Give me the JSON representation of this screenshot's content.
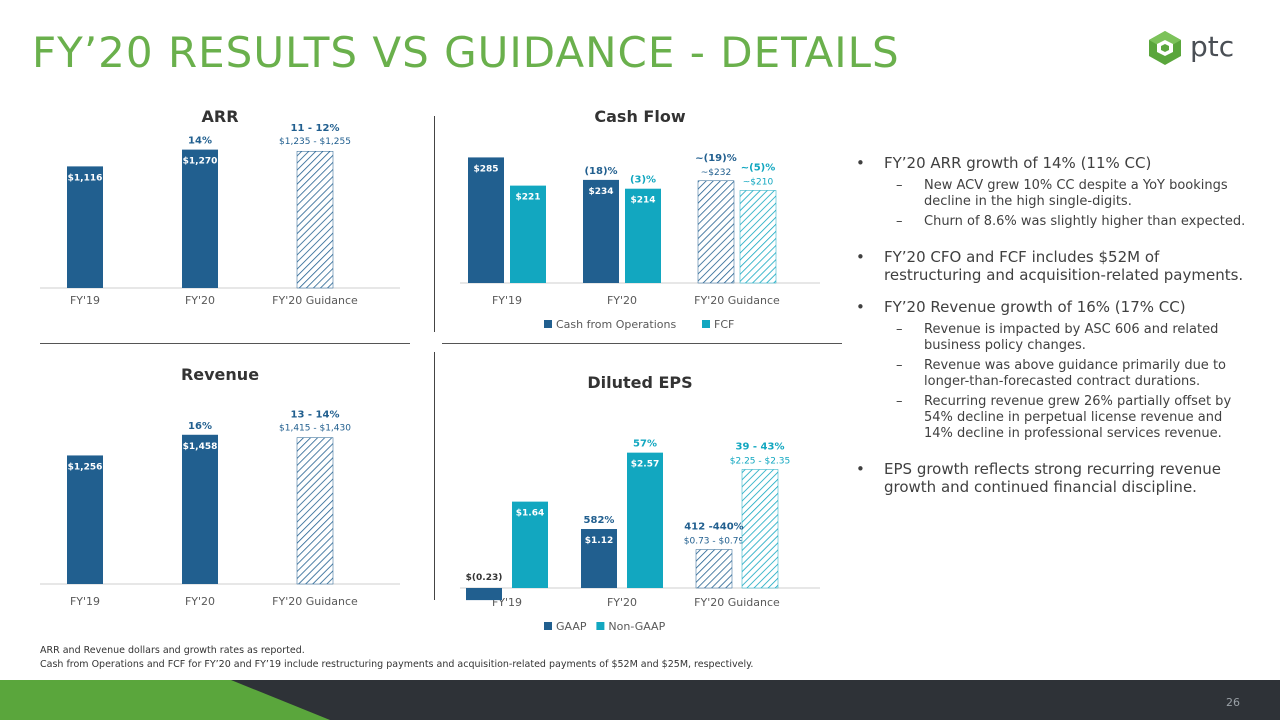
{
  "title": "FY’20 RESULTS VS GUIDANCE - DETAILS",
  "logo": {
    "text": "ptc",
    "icon": "ptc-logo-icon"
  },
  "colors": {
    "dark": "#215f8f",
    "teal": "#12a7c0",
    "green": "#6ab04c"
  },
  "chart_data": [
    {
      "type": "bar",
      "title": "ARR",
      "categories": [
        "FY'19",
        "FY'20",
        "FY'20 Guidance"
      ],
      "series": [
        {
          "values": [
            1116,
            1270,
            null
          ],
          "labels": [
            "$1,116",
            "$1,270",
            ""
          ]
        }
      ],
      "guidance": {
        "category": "FY'20 Guidance",
        "low": 1235,
        "high": 1255,
        "label": "$1,235 - $1,255"
      },
      "annotations": [
        {
          "category": "FY'20",
          "text": "14%"
        },
        {
          "category": "FY'20 Guidance",
          "text": "11 - 12%"
        }
      ],
      "ylim": [
        0,
        1450
      ]
    },
    {
      "type": "bar",
      "title": "Cash Flow",
      "categories": [
        "FY'19",
        "FY'20",
        "FY'20 Guidance"
      ],
      "series": [
        {
          "name": "Cash from Operations",
          "values": [
            285,
            234,
            232
          ],
          "labels": [
            "$285",
            "$234",
            "~$232"
          ],
          "hatched": [
            false,
            false,
            true
          ]
        },
        {
          "name": "FCF",
          "values": [
            221,
            214,
            210
          ],
          "labels": [
            "$221",
            "$214",
            "~$210"
          ],
          "hatched": [
            false,
            false,
            true
          ]
        }
      ],
      "annotations": [
        {
          "category": "FY'20",
          "series": 0,
          "text": "(18)%"
        },
        {
          "category": "FY'20",
          "series": 1,
          "text": "(3)%"
        },
        {
          "category": "FY'20 Guidance",
          "series": 0,
          "text": "~(19)%"
        },
        {
          "category": "FY'20 Guidance",
          "series": 1,
          "text": "~(5)%"
        }
      ],
      "legend": "bottom",
      "ylim": [
        0,
        320
      ]
    },
    {
      "type": "bar",
      "title": "Revenue",
      "categories": [
        "FY'19",
        "FY'20",
        "FY'20 Guidance"
      ],
      "series": [
        {
          "values": [
            1256,
            1458,
            null
          ],
          "labels": [
            "$1,256",
            "$1,458",
            ""
          ]
        }
      ],
      "guidance": {
        "category": "FY'20 Guidance",
        "low": 1415,
        "high": 1430,
        "label": "$1,415 - $1,430"
      },
      "annotations": [
        {
          "category": "FY'20",
          "text": "16%"
        },
        {
          "category": "FY'20 Guidance",
          "text": "13 - 14%"
        }
      ],
      "ylim": [
        0,
        1700
      ]
    },
    {
      "type": "bar",
      "title": "Diluted EPS",
      "categories": [
        "FY'19",
        "FY'20",
        "FY'20 Guidance"
      ],
      "series": [
        {
          "name": "GAAP",
          "values": [
            -0.23,
            1.12,
            0.73
          ],
          "labels": [
            "$(0.23)",
            "$1.12",
            "$0.73 - $0.79"
          ],
          "hatched": [
            false,
            false,
            true
          ]
        },
        {
          "name": "Non-GAAP",
          "values": [
            1.64,
            2.57,
            2.25
          ],
          "labels": [
            "$1.64",
            "$2.57",
            "$2.25 - $2.35"
          ],
          "hatched": [
            false,
            false,
            true
          ]
        }
      ],
      "annotations": [
        {
          "category": "FY'20",
          "series": 0,
          "text": "582%"
        },
        {
          "category": "FY'20",
          "series": 1,
          "text": "57%"
        },
        {
          "category": "FY'20 Guidance",
          "series": 0,
          "text": "412 -440%"
        },
        {
          "category": "FY'20 Guidance",
          "series": 1,
          "text": "39 - 43%"
        }
      ],
      "legend": "bottom",
      "ylim": [
        -0.25,
        3.0
      ]
    }
  ],
  "bullets": [
    {
      "text": "FY’20 ARR growth of 14% (11% CC)",
      "subs": [
        "New ACV grew 10% CC despite a YoY bookings decline in the high single-digits.",
        "Churn of 8.6% was slightly higher than expected."
      ]
    },
    {
      "text": "FY’20 CFO and FCF includes $52M of restructuring and acquisition-related payments.",
      "subs": []
    },
    {
      "text": "FY’20 Revenue growth of 16% (17% CC)",
      "subs": [
        "Revenue is impacted by ASC 606 and related business policy changes.",
        "Revenue was above guidance primarily due to longer-than-forecasted contract durations.",
        "Recurring revenue grew 26% partially offset by 54% decline in perpetual license revenue and 14% decline in professional services revenue."
      ]
    },
    {
      "text": "EPS growth reflects strong recurring revenue growth and continued financial discipline.",
      "subs": []
    }
  ],
  "footnotes": [
    "ARR and Revenue dollars and growth rates as reported.",
    "Cash from Operations and FCF for FY’20 and FY’19 include restructuring payments and acquisition-related payments of $52M and $25M, respectively."
  ],
  "page_number": "26"
}
